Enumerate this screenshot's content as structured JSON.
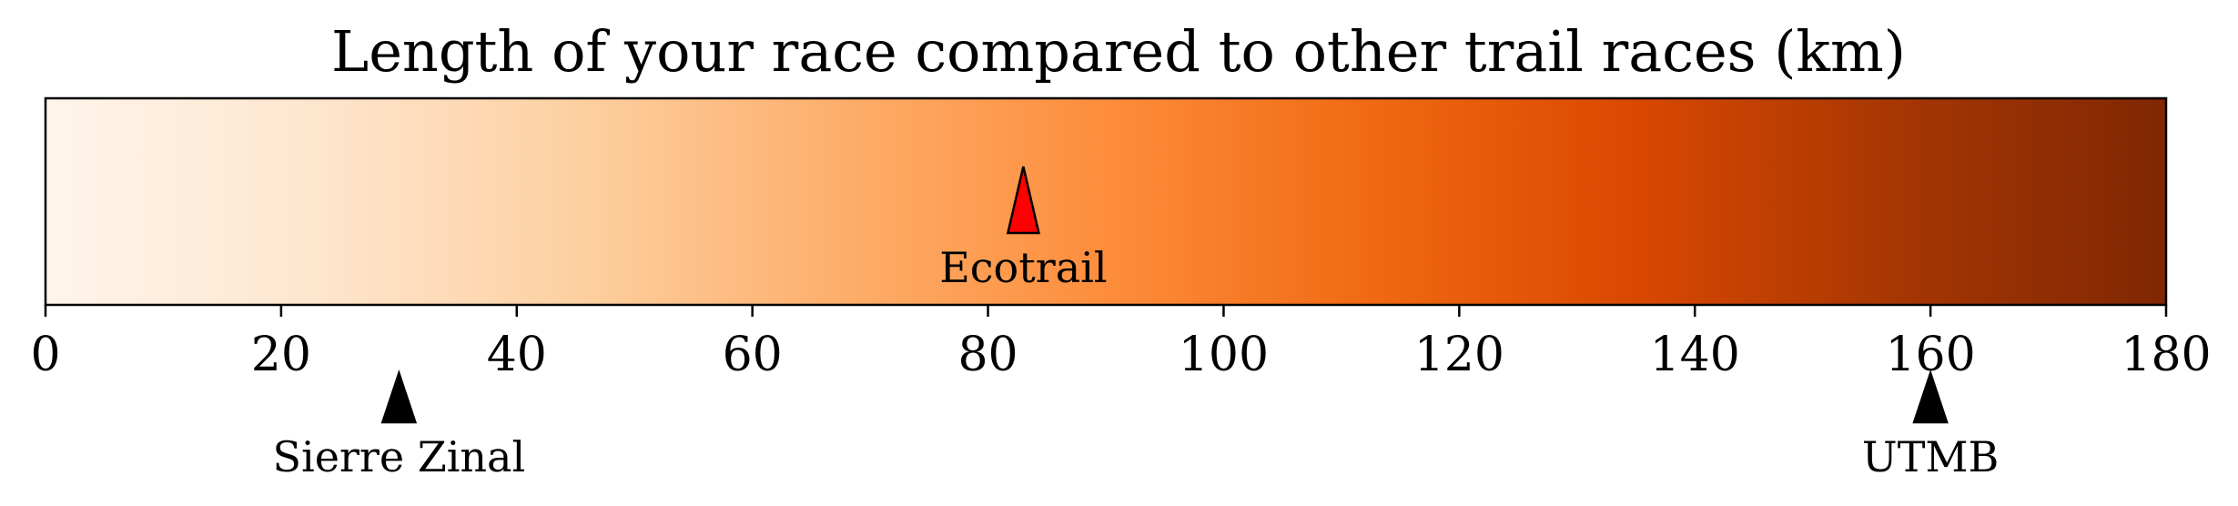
{
  "chart_data": {
    "type": "colorbar",
    "title": "Length of your race compared to other trail races (km)",
    "xlim": [
      0,
      180
    ],
    "xticks": [
      0,
      20,
      40,
      60,
      80,
      100,
      120,
      140,
      160,
      180
    ],
    "colormap": "Oranges",
    "colormap_stops": [
      "#fff5eb",
      "#fee6ce",
      "#fdd0a2",
      "#fdae6b",
      "#fd8d3c",
      "#f16913",
      "#d94801",
      "#a63603",
      "#7f2704"
    ],
    "markers": [
      {
        "label": "Ecotrail",
        "value": 83,
        "position": "inside",
        "color": "#ff0000",
        "highlight": true
      },
      {
        "label": "Sierre Zinal",
        "value": 30,
        "position": "below",
        "color": "#000000",
        "highlight": false
      },
      {
        "label": "UTMB",
        "value": 160,
        "position": "below",
        "color": "#000000",
        "highlight": false
      }
    ]
  }
}
